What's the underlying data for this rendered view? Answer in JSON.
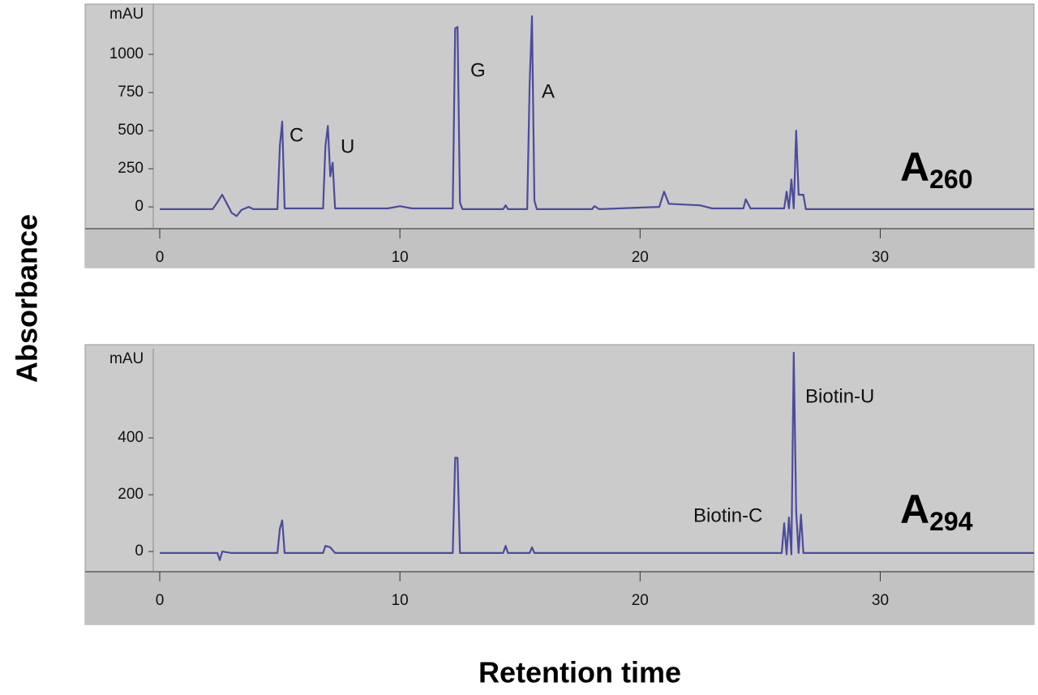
{
  "figure": {
    "ylabel": "Absorbance",
    "xlabel": "Retention time"
  },
  "chart_data": [
    {
      "type": "line",
      "unit_label": "mAU",
      "panel_label": {
        "main": "A",
        "sub": "260"
      },
      "annotations": [
        "C",
        "U",
        "G",
        "A"
      ],
      "xlim": [
        0,
        36.4
      ],
      "ylim": [
        -143,
        1330
      ],
      "xticks": [
        0,
        10,
        20,
        30
      ],
      "yticks": [
        0,
        250,
        500,
        750,
        1000
      ],
      "x": [
        0,
        2.2,
        2.4,
        2.6,
        2.8,
        3.0,
        3.2,
        3.4,
        3.7,
        3.9,
        4.9,
        5.0,
        5.1,
        5.2,
        6.8,
        6.9,
        7.0,
        7.1,
        7.2,
        7.3,
        9.5,
        10,
        10.5,
        12.2,
        12.3,
        12.4,
        12.5,
        12.6,
        14.3,
        14.4,
        14.5,
        15.3,
        15.4,
        15.5,
        15.6,
        15.7,
        18,
        18.1,
        18.3,
        20.8,
        21.0,
        21.2,
        22.5,
        23,
        24.3,
        24.4,
        24.6,
        26.0,
        26.1,
        26.2,
        26.3,
        26.4,
        26.5,
        26.6,
        26.8,
        26.9,
        36.4
      ],
      "series": [
        {
          "color": "#4b4b9e",
          "values": [
            -15,
            -15,
            30,
            80,
            20,
            -40,
            -60,
            -20,
            0,
            -15,
            -15,
            400,
            560,
            -10,
            -10,
            400,
            530,
            200,
            290,
            -10,
            -10,
            5,
            -10,
            -10,
            1170,
            1180,
            30,
            -15,
            -15,
            10,
            -15,
            -15,
            800,
            1250,
            40,
            -15,
            -15,
            5,
            -15,
            0,
            100,
            20,
            10,
            -10,
            -10,
            50,
            -10,
            -10,
            100,
            -10,
            180,
            -10,
            500,
            80,
            80,
            -15,
            -15
          ]
        }
      ]
    },
    {
      "type": "line",
      "unit_label": "mAU",
      "panel_label": {
        "main": "A",
        "sub": "294"
      },
      "annotations": [
        "Biotin-C",
        "Biotin-U"
      ],
      "xlim": [
        0,
        36.4
      ],
      "ylim": [
        -71,
        714
      ],
      "xticks": [
        0,
        10,
        20,
        30
      ],
      "yticks": [
        0,
        200,
        400
      ],
      "x": [
        0,
        2.4,
        2.5,
        2.6,
        3,
        4.9,
        5.0,
        5.1,
        5.2,
        6.8,
        6.9,
        7.1,
        7.3,
        12.2,
        12.3,
        12.4,
        12.5,
        14.3,
        14.4,
        14.5,
        15.4,
        15.5,
        15.6,
        25.9,
        26.0,
        26.1,
        26.2,
        26.3,
        26.4,
        26.5,
        26.6,
        26.7,
        26.8,
        36.4
      ],
      "series": [
        {
          "color": "#4b4b9e",
          "values": [
            -5,
            -5,
            -30,
            0,
            -5,
            -5,
            80,
            110,
            -5,
            -5,
            20,
            15,
            -5,
            -5,
            330,
            330,
            -5,
            -5,
            20,
            -5,
            -5,
            15,
            -5,
            -5,
            100,
            -10,
            120,
            -10,
            700,
            140,
            -5,
            130,
            -5,
            -5
          ]
        }
      ]
    }
  ]
}
